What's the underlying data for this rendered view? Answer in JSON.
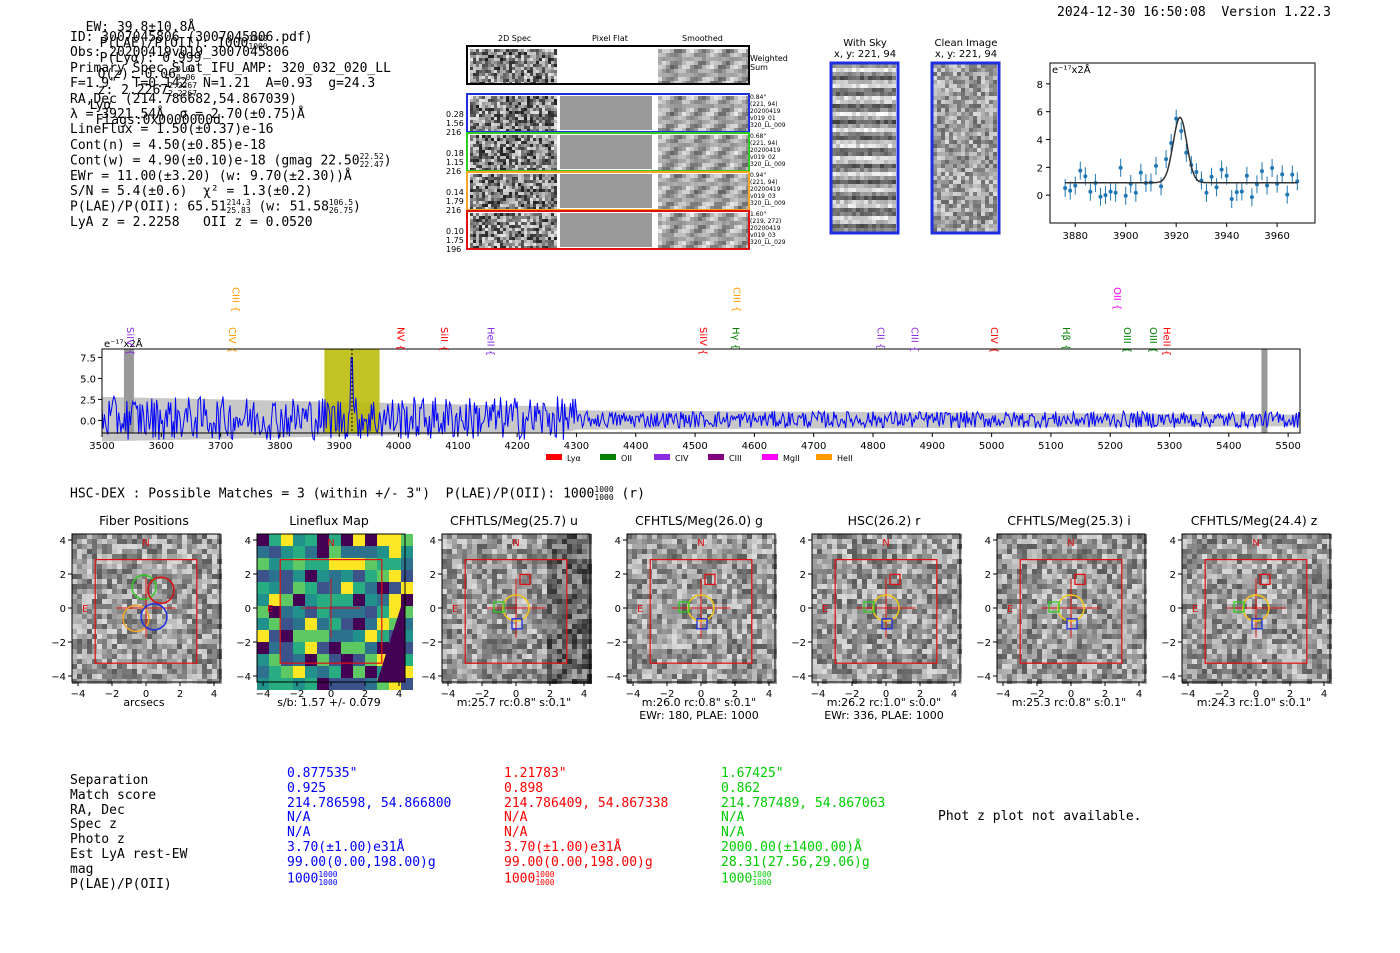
{
  "header": {
    "ew": "EW: 39.8±10.8Å",
    "plae_label": "P(LAE)/P(OII): 1000",
    "plae_hi": "1000",
    "plae_lo": "1000",
    "plya": "P(Lyα): 0.999",
    "qz_label": "Q(z): 0.06",
    "qz_hi": "0.06",
    "qz_lo": "0.06",
    "z_label": "z: 2.2267",
    "z_hi": "2.2267",
    "z_lo": "2.2267",
    "line": "Lyα",
    "flags": "Flags:0x0000000d",
    "datetime": "2024-12-30 16:50:08",
    "version": "Version 1.22.3"
  },
  "info": {
    "id": "ID: 3007045806 (3007045806.pdf)",
    "obs": "Obs: 20200419v019_3007045806",
    "primary": "Primary Spec_Slot_IFU_AMP: 320_032_020_LL",
    "fit": "F=1.9\"  T=0.142  N=1.21  A=0.93  g=24.3",
    "radec": "RA,Dec (214.786682,54.867039)",
    "lambda": "λ = 3921.54Å  σ = 2.70(±0.75)Å",
    "lineflux": "LineFlux = 1.50(±0.37)e-16",
    "contn": "Cont(n) = 4.50(±0.85)e-18",
    "contw": "Cont(w) = 4.90(±0.10)e-18 (gmag 22.50",
    "gmag_hi": "22.52",
    "gmag_lo": "22.47",
    "ewr": "EWr = 11.00(±3.20) (w: 9.70(±2.30))Å",
    "sn": "S/N = 5.4(±0.6)  χ² = 1.3(±0.2)",
    "plae": "P(LAE)/P(OII): 65.51",
    "plae_hi": "214.3",
    "plae_lo": "25.83",
    "plae_w": "(w: 51.58",
    "plae_w_hi": "106.5",
    "plae_w_lo": "26.75",
    "z": "LyA z = 2.2258   OII z = 0.0520"
  },
  "cutouts": {
    "col_titles": [
      "2D Spec",
      "Pixel Flat",
      "Smoothed"
    ],
    "weighted": "Weighted Sum",
    "rows": [
      {
        "stats": [
          "0.28",
          "1.56",
          "216"
        ],
        "meta": [
          "0.84\"",
          "(221, 94)",
          "20200419",
          "v019_01",
          "320_LL_009"
        ],
        "color": "#1f2fe0"
      },
      {
        "stats": [
          "0.18",
          "1.15",
          "216"
        ],
        "meta": [
          "0.68\"",
          "(221, 94)",
          "20200419",
          "v019_02",
          "320_LL_009"
        ],
        "color": "#2ecc22"
      },
      {
        "stats": [
          "0.14",
          "1.79",
          "216"
        ],
        "meta": [
          "0.94\"",
          "(221, 94)",
          "20200419",
          "v019_03",
          "320_LL_009"
        ],
        "color": "#f5a623"
      },
      {
        "stats": [
          "0.10",
          "1.75",
          "196"
        ],
        "meta": [
          "1.60\"",
          "(219, 272)",
          "20200419",
          "v019_03",
          "320_LL_029"
        ],
        "color": "#e01010"
      }
    ],
    "with_sky": "With Sky",
    "with_sky_xy": "x, y: 221, 94",
    "clean": "Clean Image",
    "clean_xy": "x, y: 221, 94"
  },
  "line_fit": {
    "unit": "e⁻¹⁷x2Å",
    "x_ticks": [
      "3880",
      "3900",
      "3920",
      "3940",
      "3960"
    ],
    "y_ticks": [
      "0",
      "2",
      "4",
      "6",
      "8"
    ]
  },
  "full_spec": {
    "unit": "e⁻¹⁷x2Å",
    "x_ticks": [
      "3500",
      "3600",
      "3700",
      "3800",
      "3900",
      "4000",
      "4100",
      "4200",
      "4300",
      "4400",
      "4500",
      "4600",
      "4700",
      "4800",
      "4900",
      "5000",
      "5100",
      "5200",
      "5300",
      "5400",
      "5500"
    ],
    "y_ticks": [
      "7.5",
      "5.0",
      "2.5",
      "0.0"
    ],
    "lines": [
      {
        "label": "SiIV",
        "w": 3542,
        "c": "#8a2be2",
        "r": 0
      },
      {
        "label": "CIV",
        "w": 3714,
        "c": "#ff9900",
        "r": 0
      },
      {
        "label": "CIII",
        "w": 3720,
        "c": "#ff9900",
        "r": 1
      },
      {
        "label": "NV",
        "w": 3998,
        "c": "#ff0000",
        "r": 0
      },
      {
        "label": "SiII",
        "w": 4072,
        "c": "#ff0000",
        "r": 0
      },
      {
        "label": "HeII",
        "w": 4150,
        "c": "#8a2be2",
        "r": 0
      },
      {
        "label": "SiIV",
        "w": 4508,
        "c": "#ff0000",
        "r": 0
      },
      {
        "label": "Hγ",
        "w": 4563,
        "c": "#008000",
        "r": 0
      },
      {
        "label": "CIII",
        "w": 4565,
        "c": "#ff9900",
        "r": 1
      },
      {
        "label": "CII",
        "w": 4808,
        "c": "#8a2be2",
        "r": 0
      },
      {
        "label": "CIII",
        "w": 4865,
        "c": "#8a2be2",
        "r": 0
      },
      {
        "label": "CIV",
        "w": 4999,
        "c": "#ff0000",
        "r": 0
      },
      {
        "label": "Hβ",
        "w": 5120,
        "c": "#008000",
        "r": 0
      },
      {
        "label": "OII",
        "w": 5206,
        "c": "#ff00ff",
        "r": 1
      },
      {
        "label": "OIII",
        "w": 5223,
        "c": "#008000",
        "r": 0
      },
      {
        "label": "OIII",
        "w": 5267,
        "c": "#008000",
        "r": 0
      },
      {
        "label": "HeII",
        "w": 5290,
        "c": "#ff0000",
        "r": 0
      }
    ],
    "legend": [
      {
        "label": "Lyα",
        "c": "#ff0000"
      },
      {
        "label": "OII",
        "c": "#008000"
      },
      {
        "label": "CIV",
        "c": "#8a2be2"
      },
      {
        "label": "CIII",
        "c": "#800080"
      },
      {
        "label": "MgII",
        "c": "#ff00ff"
      },
      {
        "label": "HeII",
        "c": "#ff9900"
      }
    ]
  },
  "hsc": {
    "title": "HSC-DEX : Possible Matches = 3 (within +/- 3\")  P(LAE)/P(OII): 1000",
    "plae_hi": "1000",
    "plae_lo": "1000",
    "band": "(r)"
  },
  "thumbs": [
    {
      "title": "Fiber Positions",
      "cap1": "arcsecs",
      "cap2": ""
    },
    {
      "title": "Lineflux Map",
      "cap1": "s/b: 1.57 +/- 0.079",
      "cap2": ""
    },
    {
      "title": "CFHTLS/Meg(25.7) u",
      "cap1": "m:25.7 rc:0.8\"  s:0.1\"",
      "cap2": ""
    },
    {
      "title": "CFHTLS/Meg(26.0) g",
      "cap1": "m:26.0 rc:0.8\"  s:0.1\"",
      "cap2": "EWr: 180, PLAE: 1000"
    },
    {
      "title": "HSC(26.2) r",
      "cap1": "m:26.2 rc:1.0\"  s:0.0\"",
      "cap2": "EWr: 336, PLAE: 1000"
    },
    {
      "title": "CFHTLS/Meg(25.3) i",
      "cap1": "m:25.3 rc:0.8\"  s:0.1\"",
      "cap2": ""
    },
    {
      "title": "CFHTLS/Meg(24.4) z",
      "cap1": "m:24.3 rc:1.0\"  s:0.1\"",
      "cap2": ""
    }
  ],
  "thumb_ticks": [
    "−4",
    "−2",
    "0",
    "2",
    "4"
  ],
  "thumb_yticks": [
    "4",
    "2",
    "0",
    "−2",
    "−4"
  ],
  "compass": {
    "n": "N",
    "e": "E"
  },
  "matches": {
    "labels": [
      "Separation",
      "Match score",
      "RA, Dec",
      "Spec z",
      "Photo z",
      "Est LyA rest-EW",
      "mag",
      "P(LAE)/P(OII)"
    ],
    "cols": [
      {
        "c": "#0000ff",
        "vals": [
          "0.877535\"",
          "0.925",
          "214.786598, 54.866800",
          "N/A",
          "N/A",
          "3.70(±1.00)e31Å",
          "99.00(0.00,198.00)g",
          "1000"
        ],
        "hi": "1000",
        "lo": "1000"
      },
      {
        "c": "#ff0000",
        "vals": [
          "1.21783\"",
          "0.898",
          "214.786409, 54.867338",
          "N/A",
          "N/A",
          "3.70(±1.00)e31Å",
          "99.00(0.00,198.00)g",
          "1000"
        ],
        "hi": "1000",
        "lo": "1000"
      },
      {
        "c": "#00cc00",
        "vals": [
          "1.67425\"",
          "0.862",
          "214.787489, 54.867063",
          "N/A",
          "N/A",
          "2000.00(±1400.00)Å",
          "28.31(27.56,29.06)g",
          "1000"
        ],
        "hi": "1000",
        "lo": "1000"
      }
    ],
    "photz": "Phot z plot not available."
  },
  "colors": {
    "blue": "#0000ff",
    "grey": "#c8c8c8",
    "olive": "#b8b800"
  }
}
